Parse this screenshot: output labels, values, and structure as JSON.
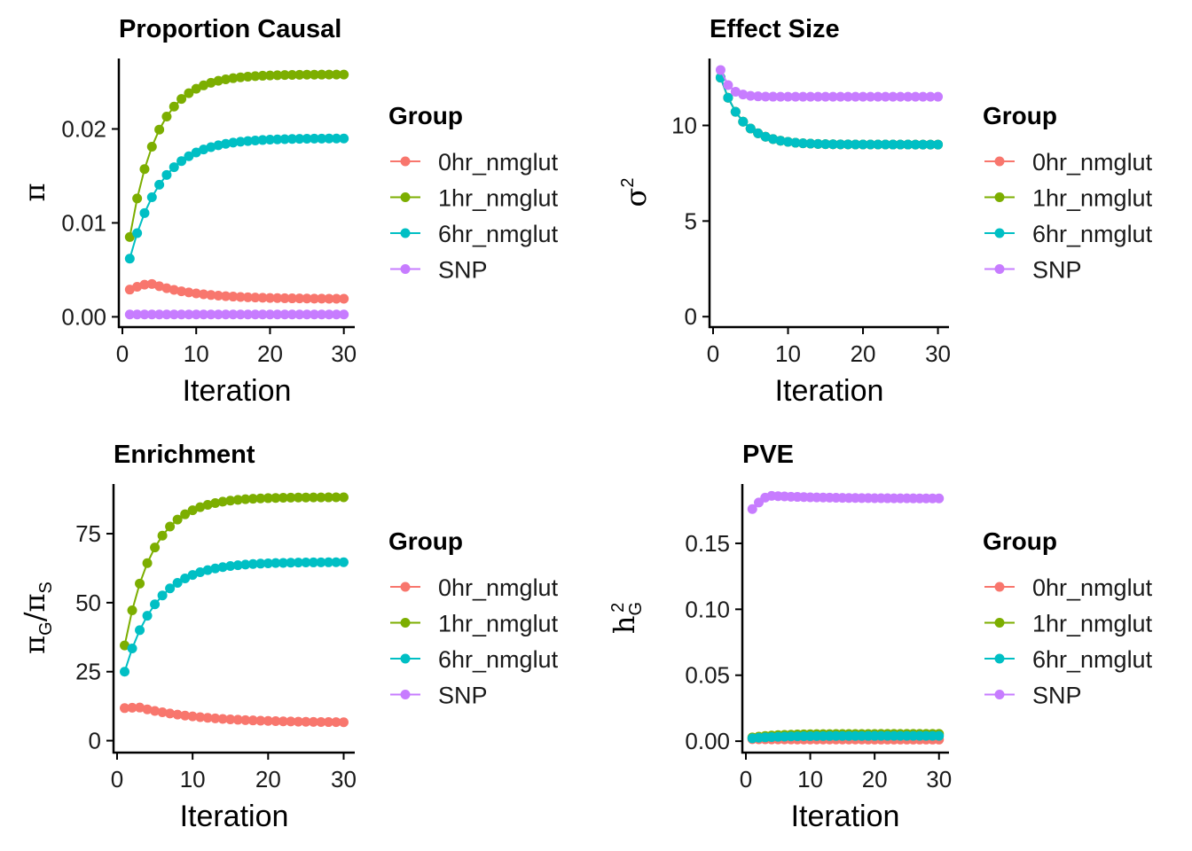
{
  "legend": {
    "title": "Group",
    "entries": [
      {
        "name": "0hr_nmglut",
        "color": "#F8766D"
      },
      {
        "name": "1hr_nmglut",
        "color": "#7CAE00"
      },
      {
        "name": "6hr_nmglut",
        "color": "#00BFC4"
      },
      {
        "name": "SNP",
        "color": "#C77CFF"
      }
    ]
  },
  "chart_data": [
    {
      "type": "line",
      "title": "Proportion Causal",
      "xlabel": "Iteration",
      "ylabel": "π",
      "ylabel_sub": "",
      "ylabel_sup": "",
      "xlim": [
        0,
        31
      ],
      "ylim": [
        -0.001,
        0.0275
      ],
      "xticks": [
        0,
        10,
        20,
        30
      ],
      "yticks": [
        0.0,
        0.01,
        0.02
      ],
      "ytick_labels": [
        "0.00",
        "0.01",
        "0.02"
      ],
      "x_start": 1,
      "x_end": 30,
      "series": [
        {
          "name": "0hr_nmglut",
          "start": 0.0029,
          "end": 0.0019,
          "peak": 0.0035,
          "peak_at": 4,
          "decay": 6
        },
        {
          "name": "1hr_nmglut",
          "start": 0.0085,
          "end": 0.0258,
          "decay": 3.7
        },
        {
          "name": "6hr_nmglut",
          "start": 0.0062,
          "end": 0.019,
          "decay": 4.2
        },
        {
          "name": "SNP",
          "start": 0.00025,
          "end": 0.00025,
          "decay": 5
        }
      ]
    },
    {
      "type": "line",
      "title": "Effect Size",
      "xlabel": "Iteration",
      "ylabel": "σ",
      "ylabel_sub": "",
      "ylabel_sup": "2",
      "xlim": [
        0,
        31
      ],
      "ylim": [
        -0.5,
        13.5
      ],
      "xticks": [
        0,
        10,
        20,
        30
      ],
      "yticks": [
        0,
        5,
        10
      ],
      "ytick_labels": [
        "0",
        "5",
        "10"
      ],
      "x_start": 1,
      "x_end": 30,
      "series": [
        {
          "name": "0hr_nmglut",
          "start": 12.5,
          "end": 9.0,
          "decay": 2.8
        },
        {
          "name": "1hr_nmglut",
          "start": 12.5,
          "end": 9.0,
          "decay": 2.8
        },
        {
          "name": "6hr_nmglut",
          "start": 12.5,
          "end": 9.0,
          "decay": 2.8
        },
        {
          "name": "SNP",
          "start": 12.9,
          "end": 11.5,
          "decay": 1.2
        }
      ]
    },
    {
      "type": "line",
      "title": "Enrichment",
      "xlabel": "Iteration",
      "ylabel": "π",
      "ylabel_sub": "G",
      "ylabel_sup": "",
      "ylabel_den": "π",
      "ylabel_den_sub": "S",
      "xlim": [
        0,
        31
      ],
      "ylim": [
        -4,
        93
      ],
      "xticks": [
        0,
        10,
        20,
        30
      ],
      "yticks": [
        0,
        25,
        50,
        75
      ],
      "ytick_labels": [
        "0",
        "25",
        "50",
        "75"
      ],
      "x_start": 1,
      "x_end": 30,
      "series": [
        {
          "name": "0hr_nmglut",
          "start": 11.8,
          "end": 6.5,
          "peak": 12.0,
          "peak_at": 3,
          "decay": 8
        },
        {
          "name": "1hr_nmglut",
          "start": 34.5,
          "end": 88.2,
          "decay": 3.7
        },
        {
          "name": "6hr_nmglut",
          "start": 25.0,
          "end": 64.7,
          "decay": 4.2
        },
        {
          "name": "SNP",
          "start": null,
          "end": null
        }
      ]
    },
    {
      "type": "line",
      "title": "PVE",
      "xlabel": "Iteration",
      "ylabel": "h",
      "ylabel_sub": "G",
      "ylabel_sup": "2",
      "xlim": [
        0,
        31
      ],
      "ylim": [
        -0.008,
        0.195
      ],
      "xticks": [
        0,
        10,
        20,
        30
      ],
      "yticks": [
        0.0,
        0.05,
        0.1,
        0.15
      ],
      "ytick_labels": [
        "0.00",
        "0.05",
        "0.10",
        "0.15"
      ],
      "x_start": 1,
      "x_end": 30,
      "series": [
        {
          "name": "0hr_nmglut",
          "start": 0.0015,
          "end": 0.0012,
          "decay": 5
        },
        {
          "name": "1hr_nmglut",
          "start": 0.0028,
          "end": 0.0055,
          "decay": 3.7
        },
        {
          "name": "6hr_nmglut",
          "start": 0.0022,
          "end": 0.004,
          "decay": 4.2
        },
        {
          "name": "SNP",
          "start": 0.176,
          "end": 0.184,
          "peak": 0.186,
          "peak_at": 4,
          "decay": 8
        }
      ]
    }
  ]
}
